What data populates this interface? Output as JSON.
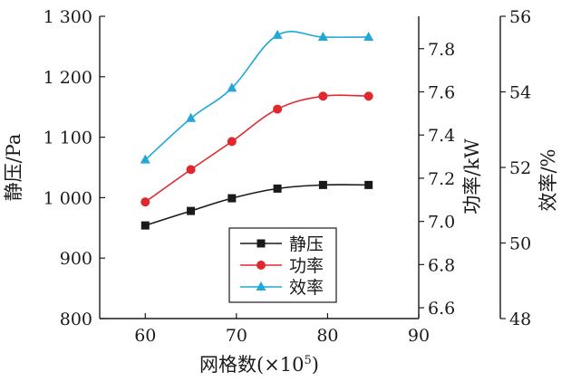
{
  "chart_data": {
    "type": "line",
    "xlabel": "网格数",
    "xlabel_suffix": "(×10",
    "xlabel_exp": "5",
    "xlabel_close": ")",
    "xlim": [
      55,
      90
    ],
    "xticks": [
      60,
      70,
      80,
      90
    ],
    "xtick_labels": [
      "60",
      "70",
      "80",
      "90"
    ],
    "axes": {
      "left": {
        "label": "静压/Pa",
        "ylim": [
          800,
          1300
        ],
        "ticks": [
          800,
          900,
          1000,
          1100,
          1200,
          1300
        ],
        "tick_labels": [
          "800",
          "900",
          "1 000",
          "1 100",
          "1 200",
          "1 300"
        ]
      },
      "right1": {
        "label": "功率/kW",
        "ylim": [
          6.55,
          7.95
        ],
        "ticks": [
          6.6,
          6.8,
          7.0,
          7.2,
          7.4,
          7.6,
          7.8
        ],
        "tick_labels": [
          "6.6",
          "6.8",
          "7.0",
          "7.2",
          "7.4",
          "7.6",
          "7.8"
        ]
      },
      "right2": {
        "label": "效率/%",
        "ylim": [
          48,
          56
        ],
        "ticks": [
          48,
          50,
          52,
          54,
          56
        ],
        "tick_labels": [
          "48",
          "50",
          "52",
          "54",
          "56"
        ]
      }
    },
    "x": [
      60,
      65,
      69.5,
      74.5,
      79.5,
      84.5
    ],
    "series": [
      {
        "name": "静压",
        "axis": "left",
        "color": "#1a1a1a",
        "marker": "square",
        "values": [
          954,
          978,
          999,
          1015,
          1021,
          1021
        ]
      },
      {
        "name": "功率",
        "axis": "right1",
        "color": "#e0282e",
        "marker": "circle",
        "values": [
          7.09,
          7.24,
          7.37,
          7.52,
          7.58,
          7.58
        ]
      },
      {
        "name": "效率",
        "axis": "right2",
        "color": "#1fa8d8",
        "marker": "triangle",
        "values": [
          52.2,
          53.3,
          54.1,
          55.5,
          55.45,
          55.45
        ]
      }
    ],
    "legend_position": "lower-center"
  }
}
